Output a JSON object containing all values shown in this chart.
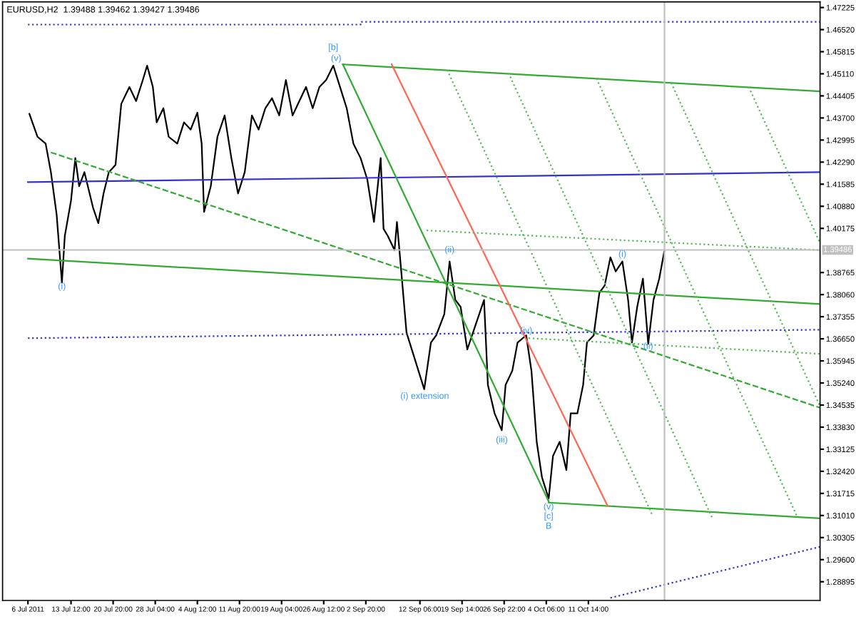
{
  "chart_data": {
    "type": "line",
    "title": "EURUSD,H2  1.39488 1.39462 1.39427 1.39486",
    "xlim": [
      "2011-07-01T14:00",
      "2011-11-20T22:00"
    ],
    "ylim": [
      1.28298,
      1.47406
    ],
    "xticks": [
      {
        "value": "2011-07-06T00:00",
        "label": "6 Jul 2011"
      },
      {
        "value": "2011-07-13T12:00",
        "label": "13 Jul 12:00"
      },
      {
        "value": "2011-07-20T20:00",
        "label": "20 Jul 20:00"
      },
      {
        "value": "2011-07-28T04:00",
        "label": "28 Jul 04:00"
      },
      {
        "value": "2011-08-04T12:00",
        "label": "4 Aug 12:00"
      },
      {
        "value": "2011-08-11T20:00",
        "label": "11 Aug 20:00"
      },
      {
        "value": "2011-08-19T04:00",
        "label": "19 Aug 04:00"
      },
      {
        "value": "2011-08-26T12:00",
        "label": "26 Aug 12:00"
      },
      {
        "value": "2011-09-02T20:00",
        "label": "2 Sep 20:00"
      },
      {
        "value": "2011-09-12T06:00",
        "label": "12 Sep 06:00"
      },
      {
        "value": "2011-09-19T14:00",
        "label": "19 Sep 14:00"
      },
      {
        "value": "2011-09-26T22:00",
        "label": "26 Sep 22:00"
      },
      {
        "value": "2011-10-04T06:00",
        "label": "4 Oct 06:00"
      },
      {
        "value": "2011-10-11T14:00",
        "label": "11 Oct 14:00"
      }
    ],
    "yticks": [
      1.47225,
      {
        "value": 1.4652,
        "label": "1.46520"
      },
      1.45815,
      {
        "value": 1.4511,
        "label": "1.45110"
      },
      1.44405,
      {
        "value": 1.437,
        "label": "1.43700"
      },
      1.42995,
      {
        "value": 1.4229,
        "label": "1.42290"
      },
      1.41585,
      {
        "value": 1.4088,
        "label": "1.40880"
      },
      1.40175,
      1.38765,
      {
        "value": 1.3806,
        "label": "1.38060"
      },
      1.37355,
      {
        "value": 1.3665,
        "label": "1.36650"
      },
      1.35945,
      {
        "value": 1.3524,
        "label": "1.35240"
      },
      1.34535,
      {
        "value": 1.3383,
        "label": "1.33830"
      },
      1.33125,
      {
        "value": 1.3242,
        "label": "1.32420"
      },
      1.31715,
      {
        "value": 1.3101,
        "label": "1.31010"
      },
      1.30305,
      {
        "value": 1.296,
        "label": "1.29600"
      },
      1.28895
    ],
    "grid": false,
    "line_style": "solid",
    "series": [
      {
        "color": "#000000",
        "x": [
          "2011-07-06T06:00",
          "2011-07-07T16:00",
          "2011-07-09T02:00",
          "2011-07-10T00:00",
          "2011-07-11T00:00",
          "2011-07-11T22:00",
          "2011-07-12T10:00",
          "2011-07-13T12:00",
          "2011-07-14T06:00",
          "2011-07-14T22:00",
          "2011-07-15T20:00",
          "2011-07-17T08:00",
          "2011-07-18T06:00",
          "2011-07-19T04:00",
          "2011-07-20T02:00",
          "2011-07-21T06:00",
          "2011-07-22T06:00",
          "2011-07-23T16:00",
          "2011-07-24T20:00",
          "2011-07-26T00:00",
          "2011-07-26T18:00",
          "2011-07-27T18:00",
          "2011-07-28T10:00",
          "2011-07-29T14:00",
          "2011-07-30T12:00",
          "2011-08-01T00:00",
          "2011-08-02T04:00",
          "2011-08-03T08:00",
          "2011-08-04T12:00",
          "2011-08-05T06:00",
          "2011-08-05T16:00",
          "2011-08-06T20:00",
          "2011-08-08T00:00",
          "2011-08-09T06:00",
          "2011-08-10T10:00",
          "2011-08-11T14:00",
          "2011-08-12T18:00",
          "2011-08-14T00:00",
          "2011-08-15T04:00",
          "2011-08-16T08:00",
          "2011-08-17T12:00",
          "2011-08-18T18:00",
          "2011-08-19T22:00",
          "2011-08-21T02:00",
          "2011-08-22T06:00",
          "2011-08-23T10:00",
          "2011-08-24T14:00",
          "2011-08-25T18:00",
          "2011-08-26T22:00",
          "2011-08-28T04:00",
          "2011-08-29T08:00",
          "2011-08-30T12:00",
          "2011-08-31T16:00",
          "2011-09-01T22:00",
          "2011-09-03T02:00",
          "2011-09-04T06:00",
          "2011-09-05T10:00",
          "2011-09-05T22:00",
          "2011-09-06T16:00",
          "2011-09-07T20:00",
          "2011-09-08T06:00",
          "2011-09-09T00:00",
          "2011-09-09T22:00",
          "2011-09-13T00:00",
          "2011-09-14T04:00",
          "2011-09-15T02:00",
          "2011-09-16T12:00",
          "2011-09-17T10:00",
          "2011-09-18T10:00",
          "2011-09-19T08:00",
          "2011-09-20T12:00",
          "2011-09-21T18:00",
          "2011-09-23T10:00",
          "2011-09-24T02:00",
          "2011-09-25T06:00",
          "2011-09-26T12:00",
          "2011-09-27T04:00",
          "2011-09-28T08:00",
          "2011-09-29T06:00",
          "2011-09-30T18:00",
          "2011-10-01T16:00",
          "2011-10-02T14:00",
          "2011-10-03T12:00",
          "2011-10-04T16:00",
          "2011-10-05T10:00",
          "2011-10-06T14:00",
          "2011-10-07T18:00",
          "2011-10-08T12:00",
          "2011-10-09T16:00",
          "2011-10-10T16:00",
          "2011-10-11T08:00",
          "2011-10-12T12:00",
          "2011-10-13T12:00",
          "2011-10-14T10:00",
          "2011-10-15T10:00",
          "2011-10-16T08:00",
          "2011-10-17T12:00",
          "2011-10-18T12:00",
          "2011-10-19T04:00",
          "2011-10-20T02:00",
          "2011-10-21T02:00",
          "2011-10-22T00:00",
          "2011-10-22T22:00",
          "2011-10-23T22:00",
          "2011-10-24T20:00"
        ],
        "values": [
          1.4383,
          1.431,
          1.4288,
          1.4197,
          1.4061,
          1.3844,
          1.3993,
          1.4106,
          1.4242,
          1.4152,
          1.4197,
          1.4084,
          1.4034,
          1.4129,
          1.4197,
          1.422,
          1.4415,
          1.4469,
          1.4424,
          1.4491,
          1.4537,
          1.4469,
          1.4356,
          1.4401,
          1.431,
          1.4288,
          1.4356,
          1.4333,
          1.4387,
          1.4288,
          1.407,
          1.4152,
          1.431,
          1.4378,
          1.4242,
          1.4129,
          1.4197,
          1.4378,
          1.4333,
          1.4401,
          1.4433,
          1.4378,
          1.4491,
          1.4378,
          1.4424,
          1.4469,
          1.4401,
          1.4469,
          1.4491,
          1.4537,
          1.4469,
          1.4401,
          1.4288,
          1.4242,
          1.4174,
          1.4038,
          1.4242,
          1.4016,
          1.3993,
          1.3948,
          1.4038,
          1.388,
          1.3685,
          1.3504,
          1.3653,
          1.3676,
          1.3744,
          1.3912,
          1.3789,
          1.3767,
          1.3631,
          1.3699,
          1.3789,
          1.3518,
          1.3427,
          1.3373,
          1.3518,
          1.3563,
          1.3653,
          1.3676,
          1.3563,
          1.3336,
          1.3223,
          1.3155,
          1.3291,
          1.3336,
          1.3246,
          1.3427,
          1.3427,
          1.3518,
          1.3653,
          1.3676,
          1.3812,
          1.3835,
          1.3925,
          1.388,
          1.3912,
          1.3789,
          1.3653,
          1.3767,
          1.3857,
          1.3649,
          1.3789,
          1.3857,
          1.3948
        ]
      },
      {
        "color": "#3333cc",
        "x": [
          "2011-07-06T00:00",
          "2011-11-20T22:00"
        ],
        "values": [
          1.4165,
          1.4197
        ]
      },
      {
        "color": "#3333cc",
        "line_style": "dotted",
        "x": [
          "2011-07-06T00:00",
          "2011-11-20T22:00"
        ],
        "values": [
          1.3667,
          1.3694
        ]
      },
      {
        "color": "#3333cc",
        "line_style": "dotted",
        "x": [
          "2011-07-06T00:00",
          "2011-09-01T22:00",
          "2011-09-01T22:00",
          "2011-11-20T22:00"
        ],
        "values": [
          1.4668,
          1.4668,
          1.4677,
          1.4677
        ]
      },
      {
        "color": "#3333cc",
        "line_style": "dotted",
        "x": [
          "2011-10-15T10:00",
          "2011-11-20T22:00"
        ],
        "values": [
          1.2838,
          1.3001
        ]
      },
      {
        "color": "#33aa33",
        "x": [
          "2011-07-06T00:00",
          "2011-11-20T22:00"
        ],
        "values": [
          1.3921,
          1.3776
        ]
      },
      {
        "color": "#33aa33",
        "line_style": "dashed",
        "x": [
          "2011-07-10T00:00",
          "2011-11-20T22:00"
        ],
        "values": [
          1.426,
          1.3445
        ]
      },
      {
        "color": "#33aa33",
        "x": [
          "2011-08-29T20:00",
          "2011-10-04T16:00"
        ],
        "values": [
          1.4541,
          1.3146
        ]
      },
      {
        "color": "#33aa33",
        "x": [
          "2011-08-29T20:00",
          "2011-11-20T22:00"
        ],
        "values": [
          1.4541,
          1.4455
        ]
      },
      {
        "color": "#33aa33",
        "x": [
          "2011-10-04T16:00",
          "2011-11-20T22:00"
        ],
        "values": [
          1.3142,
          1.3092
        ]
      },
      {
        "color": "#ff6655",
        "x": [
          "2011-09-07T08:00",
          "2011-10-14T22:00"
        ],
        "values": [
          1.4541,
          1.3132
        ]
      },
      {
        "color": "#55bb55",
        "line_style": "dotted",
        "x": [
          "2011-09-17T00:00",
          "2011-10-22T18:00"
        ],
        "values": [
          1.4523,
          1.3101
        ]
      },
      {
        "color": "#55bb55",
        "line_style": "dotted",
        "x": [
          "2011-09-27T16:00",
          "2011-11-02T04:00"
        ],
        "values": [
          1.4514,
          1.3092
        ]
      },
      {
        "color": "#55bb55",
        "line_style": "dotted",
        "x": [
          "2011-10-13T00:00",
          "2011-11-16T20:00"
        ],
        "values": [
          1.4496,
          1.3101
        ]
      },
      {
        "color": "#55bb55",
        "line_style": "dotted",
        "x": [
          "2011-10-26T00:00",
          "2011-11-20T22:00"
        ],
        "values": [
          1.4482,
          1.345
        ]
      },
      {
        "color": "#55bb55",
        "line_style": "dotted",
        "x": [
          "2011-11-08T12:00",
          "2011-11-20T22:00"
        ],
        "values": [
          1.4469,
          1.3971
        ]
      },
      {
        "color": "#55bb55",
        "line_style": "dotted",
        "x": [
          "2011-09-13T10:00",
          "2011-11-20T22:00"
        ],
        "values": [
          1.4011,
          1.3948
        ]
      },
      {
        "color": "#55bb55",
        "line_style": "dotted",
        "x": [
          "2011-10-01T04:00",
          "2011-11-20T22:00"
        ],
        "values": [
          1.3667,
          1.3617
        ]
      }
    ],
    "ref_lines": [
      {
        "axis": "y",
        "value": 1.39486,
        "label": "1.39486",
        "color": "#c0c0c0"
      },
      {
        "axis": "x",
        "value": "2011-10-24T20:00",
        "label": null,
        "color": "#c0c0c0"
      }
    ],
    "annotations": [
      {
        "text": "(i)",
        "x": "2011-07-11T22:00",
        "y": 1.3831
      },
      {
        "text": "[b]",
        "x": "2011-08-28T04:00",
        "y": 1.4537
      },
      {
        "text": "(v)",
        "x": "2011-08-28T16:00",
        "y": 1.4559
      },
      {
        "text": "(i) extension",
        "x": "2011-09-13T02:00",
        "y": 1.3481
      },
      {
        "text": "(ii)",
        "x": "2011-09-17T10:00",
        "y": 1.3948
      },
      {
        "text": "(iii)",
        "x": "2011-09-26T12:00",
        "y": 1.3373
      },
      {
        "text": "(iv)",
        "x": "2011-09-30T18:00",
        "y": 1.369
      },
      {
        "text": "(v)",
        "x": "2011-10-04T16:00",
        "y": 1.3128
      },
      {
        "text": "[c]",
        "x": "2011-10-04T16:00",
        "y": 1.3142
      },
      {
        "text": "B",
        "x": "2011-10-04T16:00",
        "y": 1.3142
      },
      {
        "text": "(i)",
        "x": "2011-10-17T12:00",
        "y": 1.3934
      },
      {
        "text": "(ii)",
        "x": "2011-10-22T00:00",
        "y": 1.364
      }
    ]
  }
}
